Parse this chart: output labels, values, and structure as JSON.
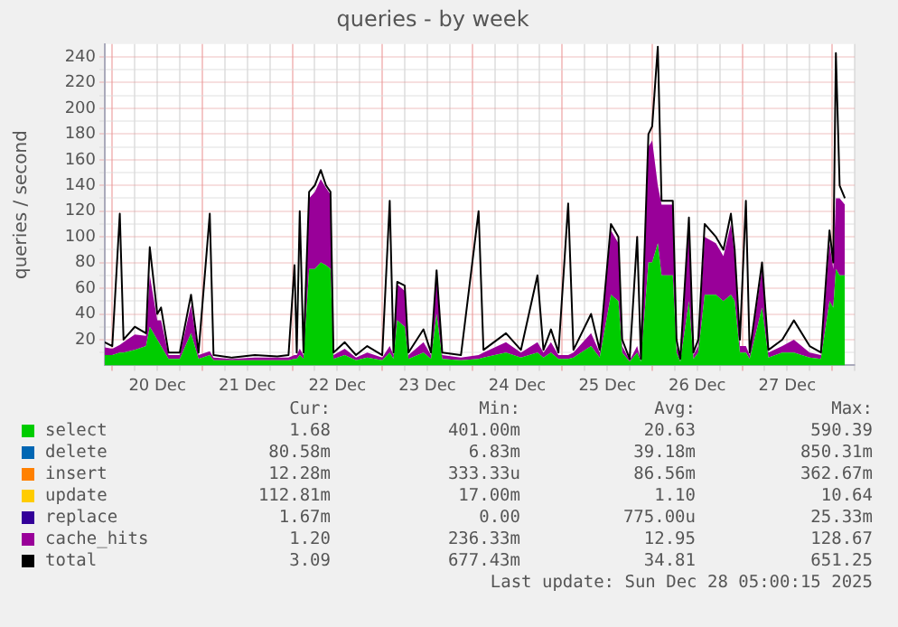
{
  "chart_data": {
    "type": "area",
    "title": "queries - by week",
    "ylabel": "queries / second",
    "stacked": true,
    "grid": true,
    "legend": "bottom",
    "marker": "none",
    "line_style": "solid",
    "x": [
      "2025-12-19T22:00",
      "2025-12-20T00:00",
      "2025-12-20T02:00",
      "2025-12-20T03:00",
      "2025-12-20T06:00",
      "2025-12-20T09:00",
      "2025-12-20T10:00",
      "2025-12-20T12:00",
      "2025-12-20T13:00",
      "2025-12-20T15:00",
      "2025-12-20T18:00",
      "2025-12-20T21:00",
      "2025-12-20T23:00",
      "2025-12-21T02:00",
      "2025-12-21T03:00",
      "2025-12-21T08:00",
      "2025-12-21T14:00",
      "2025-12-21T20:00",
      "2025-12-21T23:00",
      "2025-12-22T00:36",
      "2025-12-22T01:12",
      "2025-12-22T02:00",
      "2025-12-22T03:00",
      "2025-12-22T04:30",
      "2025-12-22T06:00",
      "2025-12-22T07:36",
      "2025-12-22T09:00",
      "2025-12-22T10:12",
      "2025-12-22T11:00",
      "2025-12-22T14:00",
      "2025-12-22T17:00",
      "2025-12-22T20:00",
      "2025-12-23T00:00",
      "2025-12-23T02:00",
      "2025-12-23T03:00",
      "2025-12-23T04:00",
      "2025-12-23T06:00",
      "2025-12-23T07:00",
      "2025-12-23T11:00",
      "2025-12-23T13:00",
      "2025-12-23T14:30",
      "2025-12-23T16:00",
      "2025-12-23T21:00",
      "2025-12-24T01:42",
      "2025-12-24T03:00",
      "2025-12-24T09:00",
      "2025-12-24T13:00",
      "2025-12-24T17:24",
      "2025-12-24T19:00",
      "2025-12-24T21:00",
      "2025-12-24T23:00",
      "2025-12-25T01:36",
      "2025-12-25T03:00",
      "2025-12-25T07:42",
      "2025-12-25T10:00",
      "2025-12-25T13:00",
      "2025-12-25T15:00",
      "2025-12-25T16:00",
      "2025-12-25T18:00",
      "2025-12-25T20:00",
      "2025-12-25T21:00",
      "2025-12-25T23:00",
      "2025-12-26T00:00",
      "2025-12-26T01:30",
      "2025-12-26T02:30",
      "2025-12-26T05:30",
      "2025-12-26T06:30",
      "2025-12-26T07:30",
      "2025-12-26T09:48",
      "2025-12-26T11:00",
      "2025-12-26T12:18",
      "2025-12-26T14:00",
      "2025-12-26T17:00",
      "2025-12-26T19:00",
      "2025-12-26T21:00",
      "2025-12-26T22:00",
      "2025-12-26T23:24",
      "2025-12-27T01:00",
      "2025-12-27T02:00",
      "2025-12-27T05:18",
      "2025-12-27T07:00",
      "2025-12-27T10:42",
      "2025-12-27T13:48",
      "2025-12-27T18:00",
      "2025-12-27T21:00",
      "2025-12-27T23:18",
      "2025-12-28T00:18",
      "2025-12-28T01:00",
      "2025-12-28T02:00",
      "2025-12-28T03:24"
    ],
    "series": [
      {
        "name": "select",
        "color": "#00cc00",
        "values": [
          8,
          8,
          10,
          10,
          12,
          15,
          30,
          20,
          15,
          5,
          5,
          25,
          5,
          8,
          4,
          4,
          4,
          4,
          4,
          5,
          5,
          8,
          5,
          75,
          75,
          80,
          78,
          75,
          5,
          8,
          4,
          6,
          4,
          10,
          5,
          35,
          30,
          5,
          10,
          5,
          40,
          5,
          4,
          5,
          6,
          10,
          6,
          10,
          6,
          10,
          5,
          5,
          6,
          15,
          6,
          55,
          50,
          10,
          3,
          10,
          3,
          80,
          80,
          95,
          70,
          70,
          10,
          3,
          50,
          5,
          10,
          55,
          55,
          50,
          55,
          50,
          10,
          10,
          5,
          45,
          6,
          10,
          10,
          6,
          5,
          50,
          45,
          75,
          70,
          70
        ]
      },
      {
        "name": "delete",
        "color": "#0066b3",
        "values": [
          null,
          null,
          null,
          null,
          null,
          null,
          null,
          null,
          null,
          null,
          null,
          null,
          null,
          null,
          null,
          null,
          null,
          null,
          null,
          null,
          null,
          null,
          null,
          null,
          null,
          null,
          null,
          null,
          null,
          null,
          null,
          null,
          null,
          null,
          null,
          null,
          null,
          null,
          null,
          null,
          null,
          null,
          null,
          null,
          null,
          null,
          null,
          null,
          null,
          null,
          null,
          null,
          null,
          null,
          null,
          null,
          null,
          null,
          null,
          null,
          null,
          null,
          null,
          null,
          null,
          null,
          null,
          null,
          null,
          null,
          null,
          null,
          null,
          null,
          null,
          null,
          null,
          null,
          null,
          null,
          null,
          null,
          null,
          null,
          null,
          null,
          null,
          null,
          null,
          null
        ]
      },
      {
        "name": "insert",
        "color": "#ff8000",
        "values": [
          null,
          null,
          null,
          null,
          null,
          null,
          null,
          null,
          null,
          null,
          null,
          null,
          null,
          null,
          null,
          null,
          null,
          null,
          null,
          null,
          null,
          null,
          null,
          null,
          null,
          null,
          null,
          null,
          null,
          null,
          null,
          null,
          null,
          null,
          null,
          null,
          null,
          null,
          null,
          null,
          null,
          null,
          null,
          null,
          null,
          null,
          null,
          null,
          null,
          null,
          null,
          null,
          null,
          null,
          null,
          null,
          null,
          null,
          null,
          null,
          null,
          null,
          null,
          null,
          null,
          null,
          null,
          null,
          null,
          null,
          null,
          null,
          null,
          null,
          null,
          null,
          null,
          null,
          null,
          null,
          null,
          null,
          null,
          null,
          null,
          null,
          null,
          null,
          null,
          null
        ]
      },
      {
        "name": "update",
        "color": "#ffcc00",
        "values": [
          null,
          null,
          null,
          null,
          null,
          null,
          null,
          null,
          null,
          null,
          null,
          null,
          null,
          null,
          null,
          null,
          null,
          null,
          null,
          null,
          null,
          null,
          null,
          null,
          null,
          null,
          null,
          null,
          null,
          null,
          null,
          null,
          null,
          null,
          null,
          null,
          null,
          null,
          null,
          null,
          null,
          null,
          null,
          null,
          null,
          null,
          null,
          null,
          null,
          null,
          null,
          null,
          null,
          null,
          null,
          null,
          null,
          null,
          null,
          null,
          null,
          null,
          null,
          null,
          null,
          null,
          null,
          null,
          null,
          null,
          null,
          null,
          null,
          null,
          null,
          null,
          null,
          null,
          null,
          null,
          null,
          null,
          null,
          null,
          null,
          null,
          null,
          null,
          null,
          null
        ]
      },
      {
        "name": "replace",
        "color": "#330099",
        "values": [
          null,
          null,
          null,
          null,
          null,
          null,
          null,
          null,
          null,
          null,
          null,
          null,
          null,
          null,
          null,
          null,
          null,
          null,
          null,
          null,
          null,
          null,
          null,
          null,
          null,
          null,
          null,
          null,
          null,
          null,
          null,
          null,
          null,
          null,
          null,
          null,
          null,
          null,
          null,
          null,
          null,
          null,
          null,
          null,
          null,
          null,
          null,
          null,
          null,
          null,
          null,
          null,
          null,
          null,
          null,
          null,
          null,
          null,
          null,
          null,
          null,
          null,
          null,
          null,
          null,
          null,
          null,
          null,
          null,
          null,
          null,
          null,
          null,
          null,
          null,
          null,
          null,
          null,
          null,
          null,
          null,
          null,
          null,
          null,
          null,
          null,
          null,
          null,
          null,
          null
        ]
      },
      {
        "name": "cache_hits",
        "color": "#990099",
        "values": [
          6,
          5,
          6,
          8,
          12,
          8,
          40,
          15,
          20,
          3,
          3,
          22,
          3,
          3,
          2,
          1,
          2,
          2,
          2,
          3,
          3,
          5,
          3,
          55,
          60,
          65,
          60,
          58,
          3,
          5,
          2,
          4,
          2,
          5,
          3,
          28,
          28,
          3,
          8,
          3,
          30,
          3,
          2,
          3,
          4,
          8,
          4,
          8,
          4,
          8,
          3,
          3,
          4,
          10,
          4,
          50,
          45,
          5,
          1,
          5,
          1,
          90,
          95,
          45,
          55,
          55,
          5,
          1,
          60,
          3,
          5,
          45,
          40,
          35,
          55,
          35,
          5,
          5,
          3,
          30,
          4,
          5,
          10,
          4,
          3,
          45,
          30,
          55,
          60,
          55
        ]
      },
      {
        "name": "total",
        "color": "#000000",
        "type": "line",
        "values": [
          18,
          15,
          118,
          20,
          30,
          25,
          92,
          40,
          45,
          10,
          10,
          55,
          10,
          118,
          8,
          6,
          8,
          7,
          8,
          78,
          10,
          120,
          10,
          135,
          140,
          152,
          140,
          135,
          10,
          18,
          8,
          15,
          8,
          128,
          10,
          65,
          62,
          10,
          28,
          10,
          74,
          10,
          8,
          120,
          12,
          25,
          12,
          70,
          12,
          28,
          10,
          126,
          12,
          40,
          12,
          110,
          100,
          20,
          5,
          100,
          5,
          180,
          186,
          248,
          128,
          128,
          20,
          5,
          115,
          10,
          20,
          110,
          100,
          90,
          118,
          90,
          20,
          128,
          10,
          80,
          12,
          20,
          35,
          15,
          10,
          105,
          80,
          243,
          140,
          130
        ]
      }
    ],
    "xlim": [
      "2025-12-19T22:00",
      "2025-12-28T06:00"
    ],
    "xticks": [
      {
        "value": "2025-12-20T00:00",
        "label": null
      },
      {
        "value": "2025-12-20T06:00",
        "label": null
      },
      {
        "value": "2025-12-20T12:00",
        "label": "20 Dec"
      },
      {
        "value": "2025-12-20T18:00",
        "label": null
      },
      {
        "value": "2025-12-21T00:00",
        "label": null
      },
      {
        "value": "2025-12-21T06:00",
        "label": null
      },
      {
        "value": "2025-12-21T12:00",
        "label": "21 Dec"
      },
      {
        "value": "2025-12-21T18:00",
        "label": null
      },
      {
        "value": "2025-12-22T00:00",
        "label": null
      },
      {
        "value": "2025-12-22T06:00",
        "label": null
      },
      {
        "value": "2025-12-22T12:00",
        "label": "22 Dec"
      },
      {
        "value": "2025-12-22T18:00",
        "label": null
      },
      {
        "value": "2025-12-23T00:00",
        "label": null
      },
      {
        "value": "2025-12-23T06:00",
        "label": null
      },
      {
        "value": "2025-12-23T12:00",
        "label": "23 Dec"
      },
      {
        "value": "2025-12-23T18:00",
        "label": null
      },
      {
        "value": "2025-12-24T00:00",
        "label": null
      },
      {
        "value": "2025-12-24T06:00",
        "label": null
      },
      {
        "value": "2025-12-24T12:00",
        "label": "24 Dec"
      },
      {
        "value": "2025-12-24T18:00",
        "label": null
      },
      {
        "value": "2025-12-25T00:00",
        "label": null
      },
      {
        "value": "2025-12-25T06:00",
        "label": null
      },
      {
        "value": "2025-12-25T12:00",
        "label": "25 Dec"
      },
      {
        "value": "2025-12-25T18:00",
        "label": null
      },
      {
        "value": "2025-12-26T00:00",
        "label": null
      },
      {
        "value": "2025-12-26T06:00",
        "label": null
      },
      {
        "value": "2025-12-26T12:00",
        "label": "26 Dec"
      },
      {
        "value": "2025-12-26T18:00",
        "label": null
      },
      {
        "value": "2025-12-27T00:00",
        "label": null
      },
      {
        "value": "2025-12-27T06:00",
        "label": null
      },
      {
        "value": "2025-12-27T12:00",
        "label": "27 Dec"
      },
      {
        "value": "2025-12-27T18:00",
        "label": null
      },
      {
        "value": "2025-12-28T00:00",
        "label": null
      },
      {
        "value": "2025-12-28T06:00",
        "label": null
      }
    ],
    "ylim": [
      0,
      250
    ],
    "yticks": [
      {
        "value": 10,
        "label": null
      },
      20,
      {
        "value": 30,
        "label": null
      },
      40,
      {
        "value": 50,
        "label": null
      },
      60,
      {
        "value": 70,
        "label": null
      },
      80,
      {
        "value": 90,
        "label": null
      },
      100,
      {
        "value": 110,
        "label": null
      },
      120,
      {
        "value": 130,
        "label": null
      },
      140,
      {
        "value": 150,
        "label": null
      },
      160,
      {
        "value": 170,
        "label": null
      },
      180,
      {
        "value": 190,
        "label": null
      },
      200,
      {
        "value": 210,
        "label": null
      },
      220,
      {
        "value": 230,
        "label": null
      },
      240
    ],
    "annotations": [
      "Cur:",
      "Min:",
      "Avg:",
      "Max:",
      "1.68",
      "401.00m",
      "20.63",
      "590.39",
      "80.58m",
      "6.83m",
      "39.18m",
      "850.31m",
      "12.28m",
      "333.33u",
      "86.56m",
      "362.67m",
      "112.81m",
      "17.00m",
      "1.10",
      "10.64",
      "1.67m",
      "0.00",
      "775.00u",
      "25.33m",
      "1.20",
      "236.33m",
      "12.95",
      "128.67",
      "3.09",
      "677.43m",
      "34.81",
      "651.25",
      "Last update: Sun Dec 28 05:00:15 2025"
    ]
  }
}
